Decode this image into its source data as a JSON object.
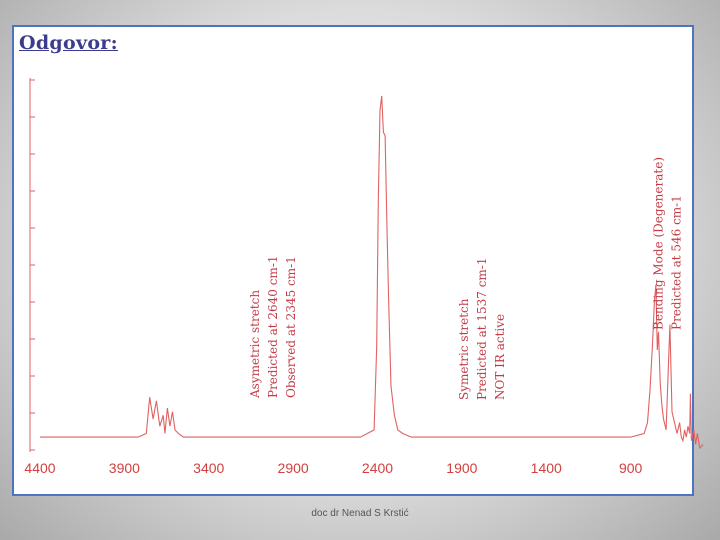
{
  "heading": "Odgovor:",
  "footer": "doc dr Nenad S Krstić",
  "colors": {
    "spectrum": "#e06262",
    "labels": "#d2403f",
    "annotation": "#c23b45",
    "frame": "#4d74c4",
    "heading": "#3c3c8e"
  },
  "chart_data": {
    "type": "line",
    "title": "",
    "xlabel": "",
    "ylabel": "",
    "x_reversed": true,
    "xlim": [
      4400,
      400
    ],
    "ylim": [
      0,
      1
    ],
    "grid": false,
    "x_ticks": [
      "4400",
      "3900",
      "3400",
      "2900",
      "2400",
      "1900",
      "1400",
      "900"
    ],
    "x_tick_values": [
      4400,
      3900,
      3400,
      2900,
      2400,
      1900,
      1400,
      900
    ],
    "series": [
      {
        "x": [
          4400,
          4200,
          4000,
          3820,
          3770,
          3750,
          3730,
          3710,
          3690,
          3670,
          3660,
          3645,
          3630,
          3615,
          3600,
          3580,
          3550,
          3500,
          3300,
          3000,
          2700,
          2500,
          2420,
          2405,
          2395,
          2385,
          2375,
          2365,
          2355,
          2345,
          2335,
          2320,
          2300,
          2280,
          2250,
          2200,
          2000,
          1800,
          1600,
          1400,
          1200,
          1000,
          900,
          820,
          800,
          785,
          770,
          760,
          750,
          742,
          735,
          725,
          715,
          705,
          690,
          667,
          655,
          640,
          625,
          610,
          600,
          590,
          580,
          570,
          560,
          550,
          546,
          540,
          525,
          515,
          505,
          490,
          470
        ],
        "y": [
          0.03,
          0.03,
          0.03,
          0.03,
          0.04,
          0.14,
          0.08,
          0.13,
          0.06,
          0.09,
          0.04,
          0.11,
          0.06,
          0.1,
          0.05,
          0.04,
          0.03,
          0.03,
          0.03,
          0.03,
          0.03,
          0.03,
          0.05,
          0.28,
          0.68,
          0.93,
          0.97,
          0.87,
          0.86,
          0.63,
          0.42,
          0.17,
          0.09,
          0.05,
          0.04,
          0.03,
          0.03,
          0.03,
          0.03,
          0.03,
          0.03,
          0.03,
          0.03,
          0.04,
          0.07,
          0.16,
          0.29,
          0.4,
          0.45,
          0.27,
          0.32,
          0.18,
          0.12,
          0.08,
          0.05,
          0.34,
          0.1,
          0.07,
          0.04,
          0.07,
          0.03,
          0.02,
          0.05,
          0.03,
          0.06,
          0.04,
          0.15,
          0.02,
          0.05,
          0.01,
          0.04,
          0.0,
          0.01
        ]
      }
    ],
    "annotations": [
      {
        "x": 2640,
        "lines": [
          "Asymetric stretch",
          "Predicted at 2640 cm-1",
          "Observed at 2345 cm-1"
        ]
      },
      {
        "x": 1537,
        "lines": [
          "Symetric stretch",
          "Predicted at 1537 cm-1",
          "NOT IR active"
        ]
      },
      {
        "x": 546,
        "lines": [
          "Bending Mode (Degenerate)",
          "Predicted at 546 cm-1"
        ]
      }
    ]
  }
}
